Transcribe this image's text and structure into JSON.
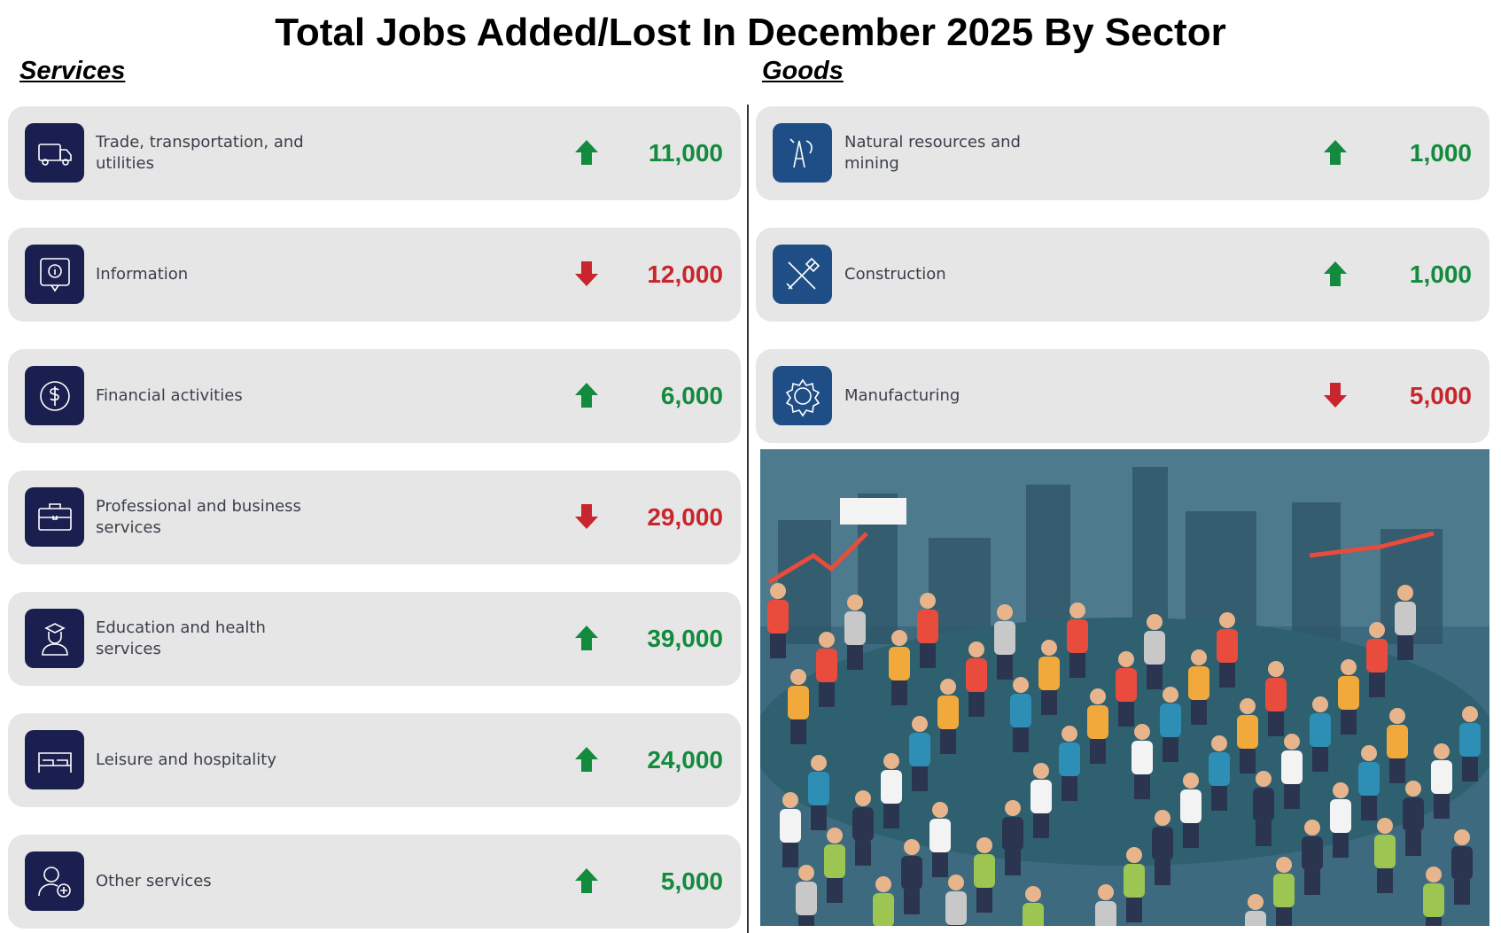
{
  "title": "Total Jobs Added/Lost In December 2025 By Sector",
  "up_color": "#138a3e",
  "down_color": "#c8252c",
  "services": {
    "heading": "Services",
    "icon_color": "#1b1f4f",
    "rows": [
      {
        "label": "Trade, transportation, and utilities",
        "value": "11,000",
        "direction": "up"
      },
      {
        "label": "Information",
        "value": "12,000",
        "direction": "down"
      },
      {
        "label": "Financial activities",
        "value": "6,000",
        "direction": "up"
      },
      {
        "label": "Professional and business services",
        "value": "29,000",
        "direction": "down"
      },
      {
        "label": "Education and health services",
        "value": "39,000",
        "direction": "up"
      },
      {
        "label": "Leisure and hospitality",
        "value": "24,000",
        "direction": "up"
      },
      {
        "label": "Other services",
        "value": "5,000",
        "direction": "up"
      }
    ]
  },
  "goods": {
    "heading": "Goods",
    "icon_color": "#1f4e86",
    "rows": [
      {
        "label": "Natural resources and mining",
        "value": "1,000",
        "direction": "up"
      },
      {
        "label": "Construction",
        "value": "1,000",
        "direction": "up"
      },
      {
        "label": "Manufacturing",
        "value": "5,000",
        "direction": "down"
      }
    ]
  }
}
